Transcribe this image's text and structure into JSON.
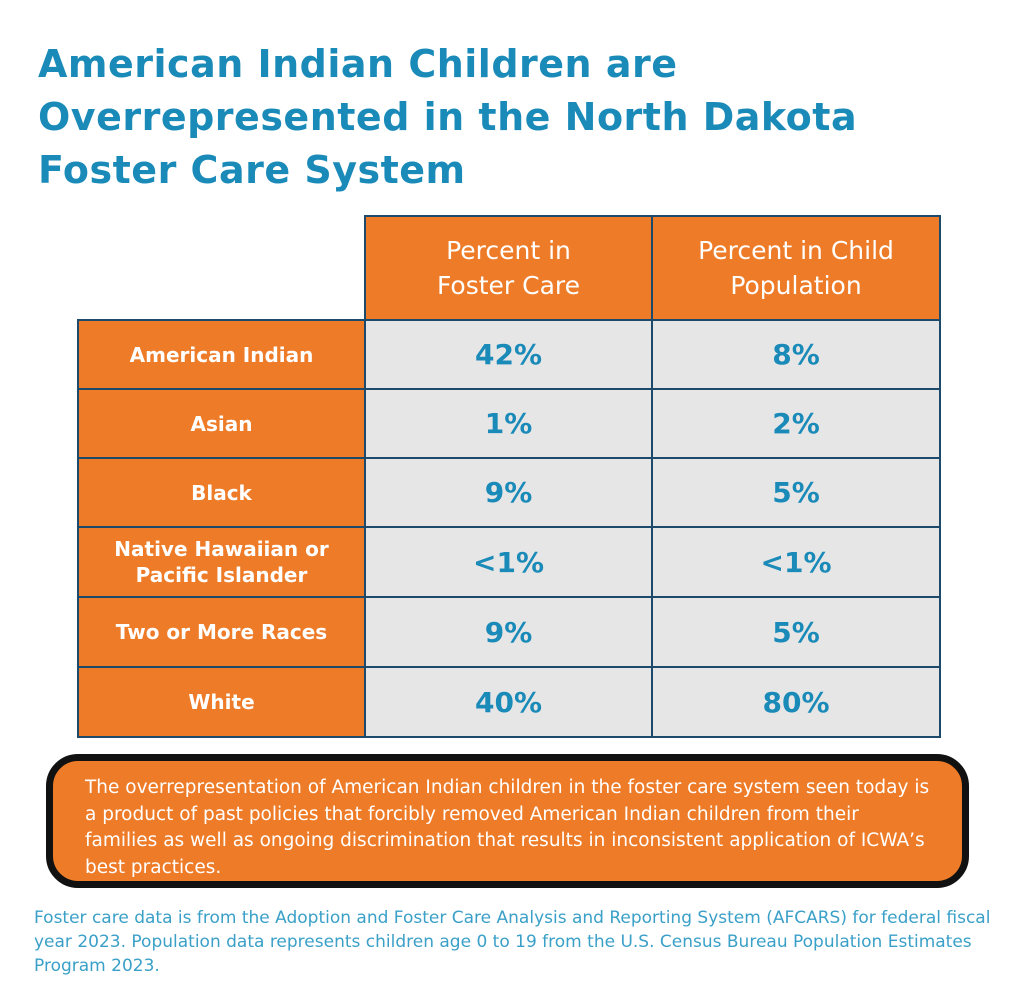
{
  "title": "American Indian Children are Overrepresented in the North Dakota Foster Care System",
  "chart_data": {
    "type": "table",
    "title": "American Indian Children are Overrepresented in the North Dakota Foster Care System",
    "columns": [
      "Percent in Foster Care",
      "Percent in Child Population"
    ],
    "rows": [
      {
        "label": "American Indian",
        "values": [
          "42%",
          "8%"
        ]
      },
      {
        "label": "Asian",
        "values": [
          "1%",
          "2%"
        ]
      },
      {
        "label": "Black",
        "values": [
          "9%",
          "5%"
        ]
      },
      {
        "label": "Native Hawaiian or Pacific Islander",
        "values": [
          "<1%",
          "<1%"
        ]
      },
      {
        "label": "Two or More Races",
        "values": [
          "9%",
          "5%"
        ]
      },
      {
        "label": "White",
        "values": [
          "40%",
          "80%"
        ]
      }
    ]
  },
  "note": "The overrepresentation of American Indian children in the foster care system seen today is a product of past policies that forcibly removed American Indian children from their families as well as ongoing discrimination that results in inconsistent application of ICWA’s best practices.",
  "footnote": "Foster care data is from the Adoption and Foster Care Analysis and Reporting System (AFCARS) for federal fiscal year 2023. Population data represents children age 0 to 19 from the U.S. Census Bureau Population Estimates Program 2023.",
  "colors": {
    "orange": "#ee7b27",
    "blue": "#1a8ab8",
    "border": "#1d4a6b",
    "cell": "#e6e6e6"
  }
}
